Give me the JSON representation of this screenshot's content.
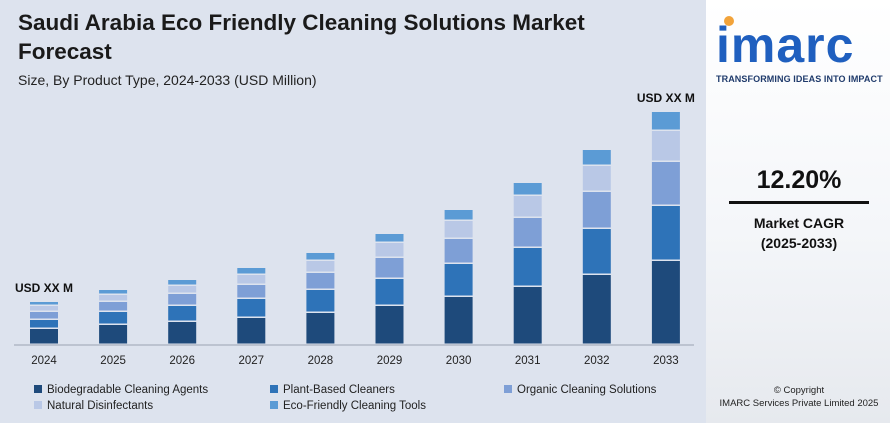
{
  "title": "Saudi Arabia Eco Friendly Cleaning Solutions Market Forecast",
  "subtitle": "Size, By Product Type, 2024-2033 (USD Million)",
  "brand": {
    "name": "imarc",
    "tagline": "TRANSFORMING IDEAS INTO IMPACT",
    "color": "#1f5fbf",
    "dot_color": "#f2a33a"
  },
  "cagr": {
    "value": "12.20%",
    "label_line1": "Market CAGR",
    "label_line2": "(2025-2033)"
  },
  "copyright": {
    "line1": "© Copyright",
    "line2": "IMARC Services Private Limited 2025"
  },
  "chart_data": {
    "type": "bar",
    "stacked": true,
    "categories": [
      "2024",
      "2025",
      "2026",
      "2027",
      "2028",
      "2029",
      "2030",
      "2031",
      "2032",
      "2033"
    ],
    "series": [
      {
        "name": "Biodegradable Cleaning Agents",
        "color": "#1e4a7b",
        "values": [
          16,
          20,
          23,
          27,
          32,
          39,
          48,
          58,
          70,
          84
        ]
      },
      {
        "name": "Plant-Based Cleaners",
        "color": "#2e73b8",
        "values": [
          9,
          13,
          16,
          19,
          23,
          27,
          33,
          39,
          46,
          55
        ]
      },
      {
        "name": "Organic Cleaning Solutions",
        "color": "#7e9fd6",
        "values": [
          8,
          10,
          12,
          14,
          17,
          21,
          25,
          30,
          37,
          44
        ]
      },
      {
        "name": "Natural Disinfectants",
        "color": "#b9c8e6",
        "values": [
          6,
          7,
          8,
          10,
          12,
          15,
          18,
          22,
          26,
          31
        ]
      },
      {
        "name": "Eco-Friendly Cleaning Tools",
        "color": "#5b9bd5",
        "values": [
          4,
          5,
          6,
          7,
          8,
          9,
          11,
          13,
          16,
          19
        ]
      }
    ],
    "annotations": [
      {
        "category": "2024",
        "text": "USD XX M"
      },
      {
        "category": "2033",
        "text": "USD XX M"
      }
    ],
    "xlabel": "",
    "ylabel": "",
    "ylim": [
      0,
      252
    ],
    "grid": false,
    "legend": "bottom"
  }
}
